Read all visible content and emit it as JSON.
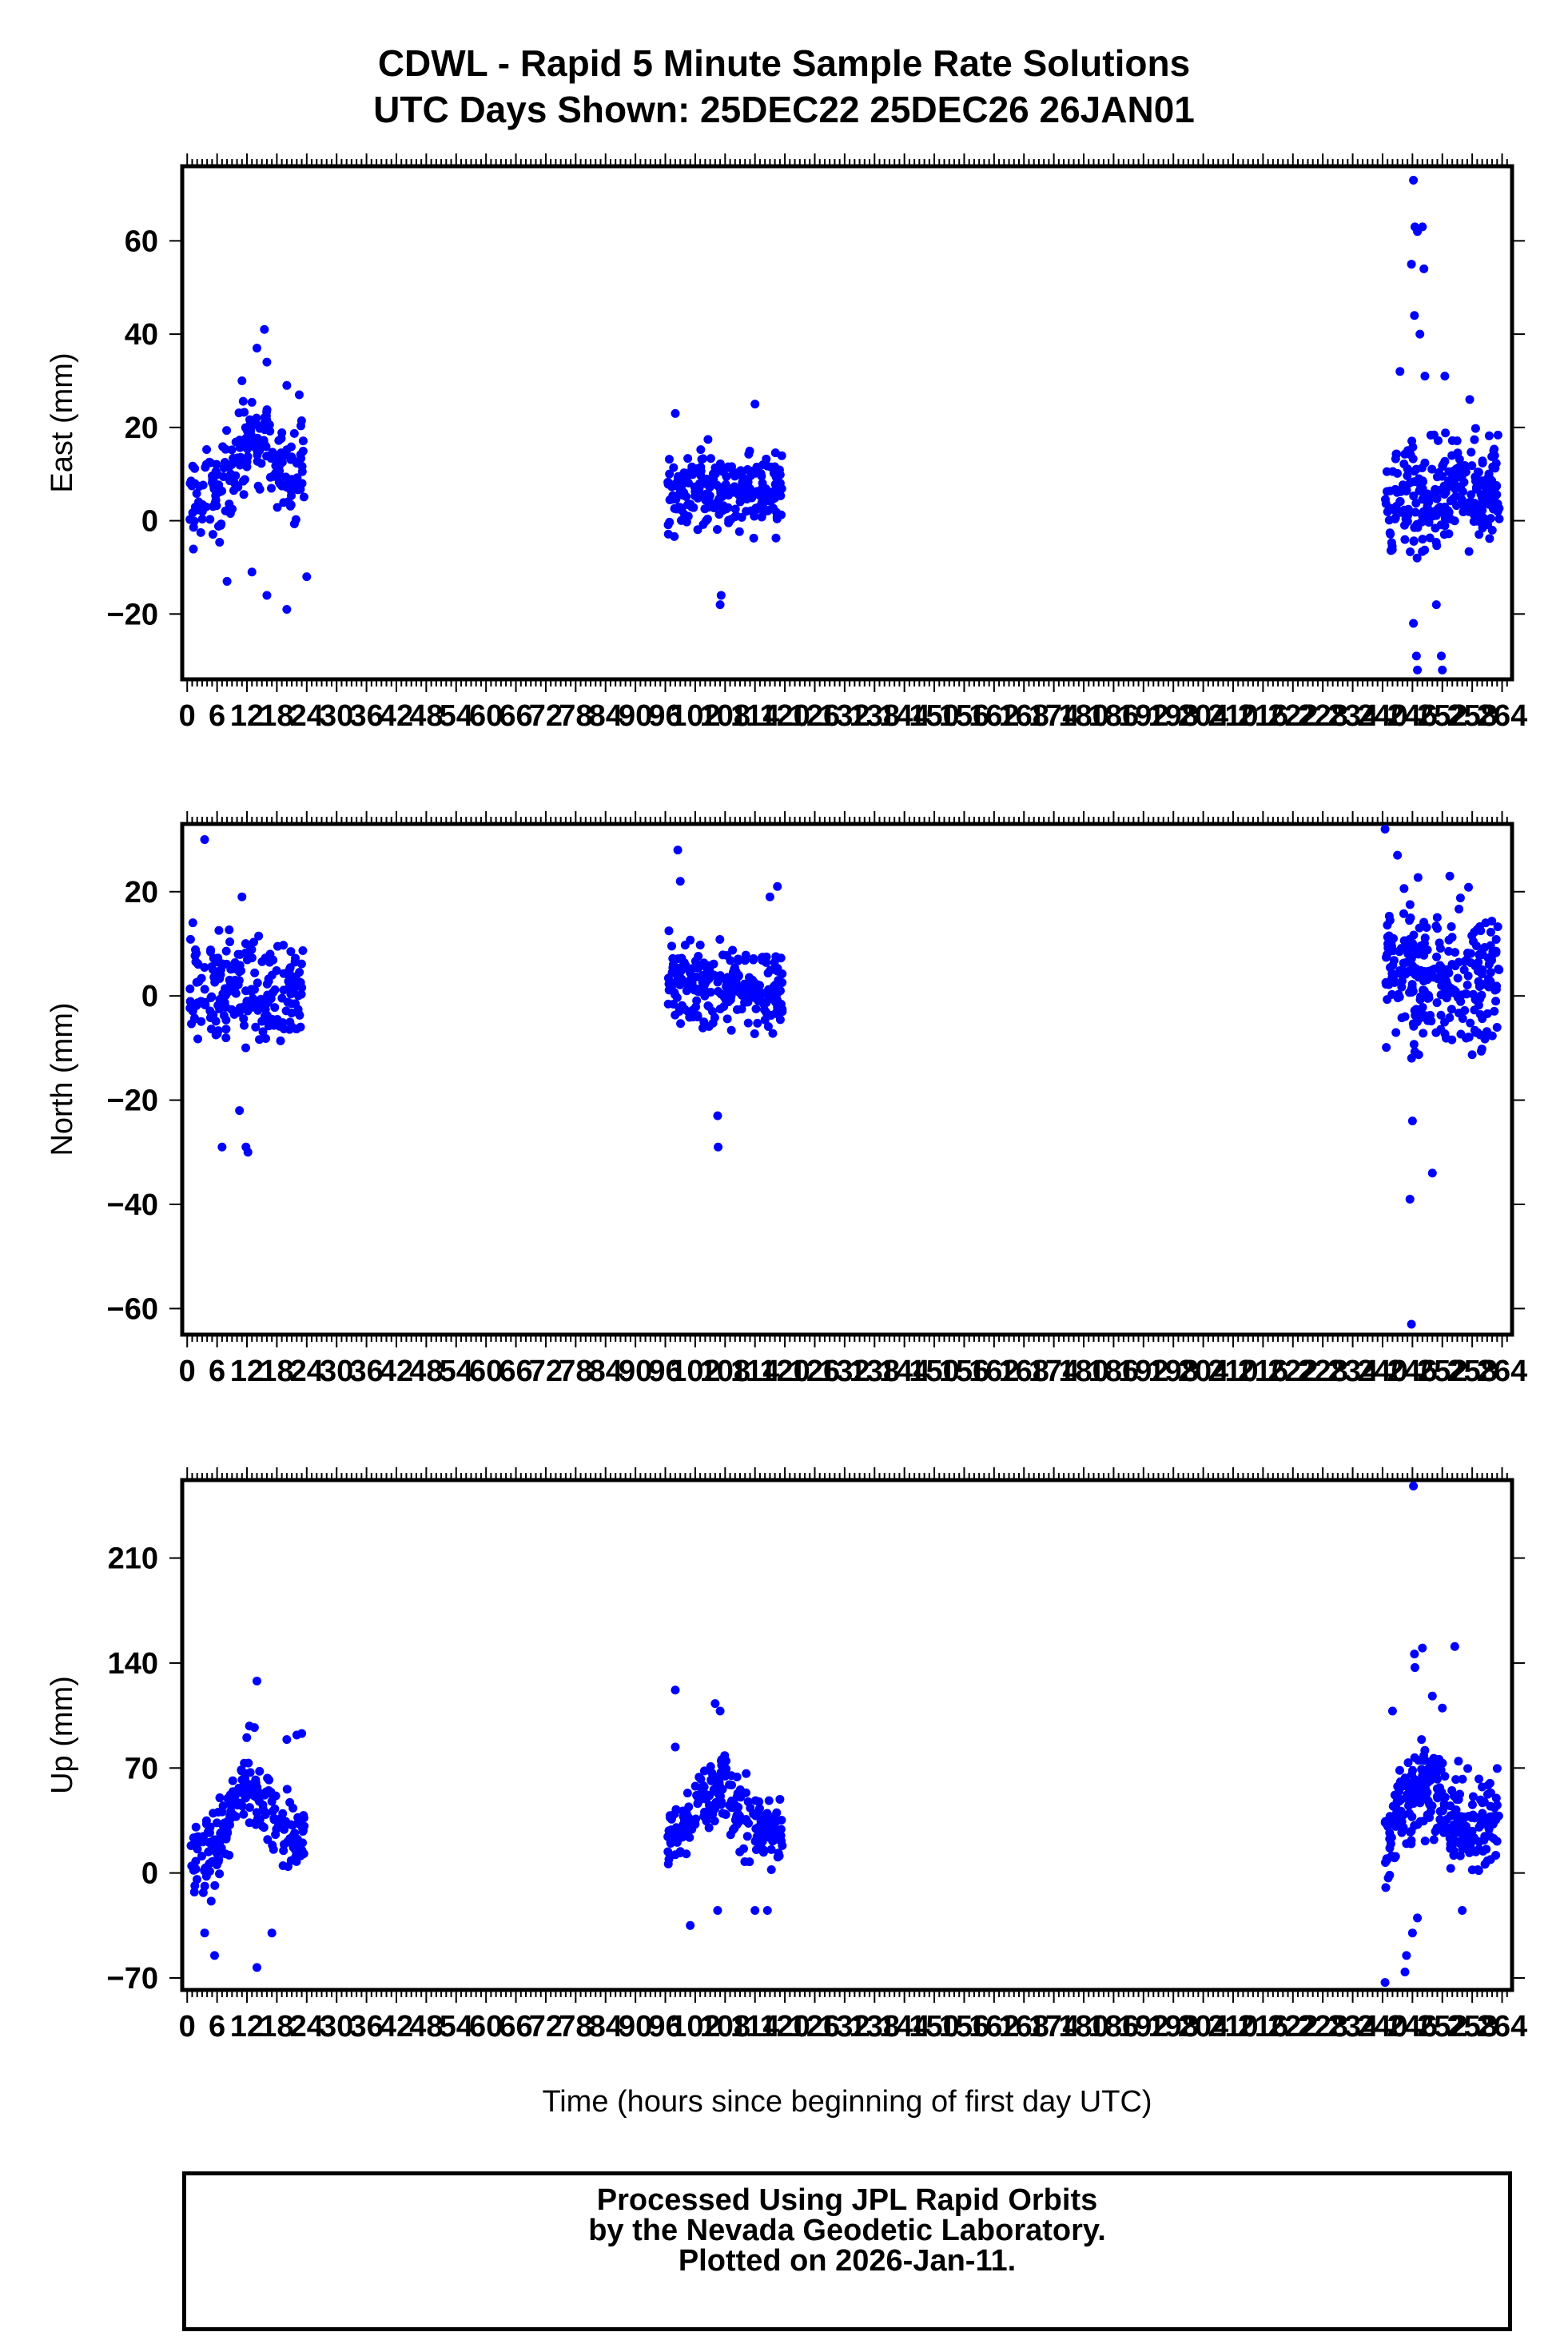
{
  "chart_data": {
    "type": "scatter",
    "title": "CDWL - Rapid 5 Minute Sample Rate Solutions",
    "subtitle": "UTC Days Shown:  25DEC22 25DEC26 26JAN01",
    "xlabel": "Time (hours since beginning of first day UTC)",
    "x_range": [
      -1,
      266
    ],
    "x_ticks": [
      0,
      6,
      12,
      18,
      24,
      30,
      36,
      42,
      48,
      54,
      60,
      66,
      72,
      78,
      84,
      90,
      96,
      102,
      108,
      114,
      120,
      126,
      132,
      138,
      144,
      150,
      156,
      162,
      168,
      174,
      180,
      186,
      192,
      198,
      204,
      210,
      216,
      222,
      228,
      234,
      240,
      246,
      252,
      258,
      264
    ],
    "point_color": "#0000ff",
    "panels": [
      {
        "ylabel": "East (mm)",
        "ylim": [
          -34,
          76
        ],
        "y_ticks": [
          -20,
          0,
          20,
          40,
          60
        ],
        "segments": [
          {
            "x_start": 0.5,
            "x_end": 23.5,
            "count": 200,
            "mean_start": 4,
            "mean_end": 10,
            "spread": 7,
            "peak_at": 14,
            "peak_add": 10
          },
          {
            "x_start": 96.5,
            "x_end": 119.5,
            "count": 230,
            "mean_start": 6,
            "mean_end": 7,
            "spread": 6,
            "peak_at": 0,
            "peak_add": 0
          },
          {
            "x_start": 240.5,
            "x_end": 263.5,
            "count": 270,
            "mean_start": 2,
            "mean_end": 8,
            "spread": 8,
            "peak_at": 0,
            "peak_add": 0
          }
        ],
        "extra_points": [
          [
            15.5,
            41
          ],
          [
            14,
            37
          ],
          [
            16,
            34
          ],
          [
            11,
            30
          ],
          [
            20,
            29
          ],
          [
            22.5,
            27
          ],
          [
            20,
            -19
          ],
          [
            16,
            -16
          ],
          [
            8,
            -13
          ],
          [
            13,
            -11
          ],
          [
            24,
            -12
          ],
          [
            107,
            -18
          ],
          [
            107.2,
            -16
          ],
          [
            98,
            23
          ],
          [
            114,
            25
          ],
          [
            246.2,
            73
          ],
          [
            246.5,
            63
          ],
          [
            248,
            63
          ],
          [
            247,
            62
          ],
          [
            245.8,
            55
          ],
          [
            248.3,
            54
          ],
          [
            246.4,
            44
          ],
          [
            247.5,
            40
          ],
          [
            248.5,
            31
          ],
          [
            252.5,
            31
          ],
          [
            243.5,
            32
          ],
          [
            257.5,
            26
          ],
          [
            246.8,
            -29
          ],
          [
            247,
            -32
          ],
          [
            251.8,
            -29
          ],
          [
            252,
            -32
          ],
          [
            246.2,
            -22
          ],
          [
            250.8,
            -18
          ]
        ]
      },
      {
        "ylabel": "North (mm)",
        "ylim": [
          -65,
          33
        ],
        "y_ticks": [
          -60,
          -40,
          -20,
          0,
          20
        ],
        "segments": [
          {
            "x_start": 0.5,
            "x_end": 23.5,
            "count": 210,
            "mean_start": 2,
            "mean_end": 1,
            "spread": 7,
            "peak_at": 0,
            "peak_add": 0
          },
          {
            "x_start": 96.5,
            "x_end": 119.5,
            "count": 230,
            "mean_start": 3,
            "mean_end": 1,
            "spread": 6,
            "peak_at": 0,
            "peak_add": 0
          },
          {
            "x_start": 240.5,
            "x_end": 263.5,
            "count": 270,
            "mean_start": 5,
            "mean_end": 3,
            "spread": 9,
            "peak_at": 0,
            "peak_add": 0
          }
        ],
        "extra_points": [
          [
            3.5,
            30
          ],
          [
            7,
            -29
          ],
          [
            11.8,
            -29
          ],
          [
            12.2,
            -30
          ],
          [
            10.5,
            -22
          ],
          [
            11,
            19
          ],
          [
            98.5,
            28
          ],
          [
            99,
            22
          ],
          [
            106.6,
            -29
          ],
          [
            106.5,
            -23
          ],
          [
            118.5,
            21
          ],
          [
            117,
            19
          ],
          [
            240.5,
            32
          ],
          [
            245.8,
            -63
          ],
          [
            245.5,
            -39
          ],
          [
            250,
            -34
          ],
          [
            246,
            -24
          ],
          [
            243,
            27
          ],
          [
            253.5,
            23
          ]
        ]
      },
      {
        "ylabel": "Up (mm)",
        "ylim": [
          -78,
          262
        ],
        "y_ticks": [
          -70,
          0,
          70,
          140,
          210
        ],
        "segments": [
          {
            "x_start": 0.5,
            "x_end": 23.5,
            "count": 220,
            "mean_start": 5,
            "mean_end": 25,
            "spread": 18,
            "peak_at": 12,
            "peak_add": 40
          },
          {
            "x_start": 96.5,
            "x_end": 119.5,
            "count": 220,
            "mean_start": 25,
            "mean_end": 30,
            "spread": 16,
            "peak_at": 106,
            "peak_add": 30
          },
          {
            "x_start": 240.5,
            "x_end": 263.5,
            "count": 280,
            "mean_start": 15,
            "mean_end": 35,
            "spread": 22,
            "peak_at": 248,
            "peak_add": 40
          }
        ],
        "extra_points": [
          [
            14,
            128
          ],
          [
            12.5,
            98
          ],
          [
            13.5,
            97
          ],
          [
            22,
            92
          ],
          [
            23,
            93
          ],
          [
            20,
            89
          ],
          [
            5.5,
            -55
          ],
          [
            14,
            -63
          ],
          [
            17,
            -40
          ],
          [
            3.5,
            -40
          ],
          [
            98,
            122
          ],
          [
            98,
            84
          ],
          [
            106,
            113
          ],
          [
            107,
            108
          ],
          [
            101,
            -35
          ],
          [
            106.5,
            -25
          ],
          [
            114,
            -25
          ],
          [
            116.5,
            -25
          ],
          [
            246.2,
            258
          ],
          [
            246.4,
            146
          ],
          [
            248,
            150
          ],
          [
            254.5,
            151
          ],
          [
            242,
            108
          ],
          [
            250,
            118
          ],
          [
            252,
            110
          ],
          [
            246.5,
            137
          ],
          [
            240.5,
            -73
          ],
          [
            244.5,
            -66
          ],
          [
            244.8,
            -55
          ],
          [
            246,
            -40
          ],
          [
            247,
            -30
          ],
          [
            256,
            -25
          ]
        ]
      }
    ]
  },
  "footer": {
    "line1": "Processed Using JPL Rapid Orbits",
    "line2": "by the Nevada Geodetic Laboratory.",
    "line3": "Plotted on 2026-Jan-11."
  }
}
